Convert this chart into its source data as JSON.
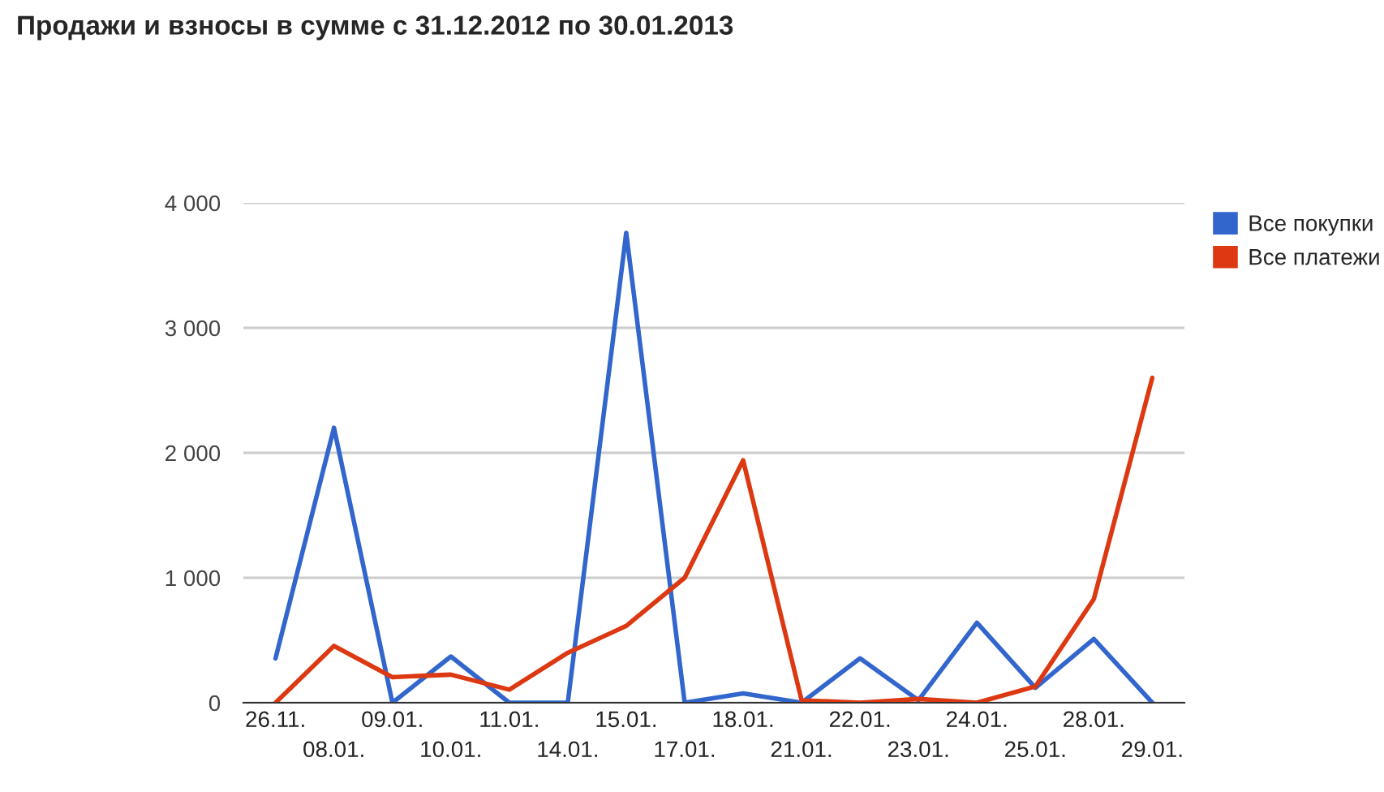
{
  "chart_data": {
    "type": "line",
    "title": "Продажи и взносы в сумме с 31.12.2012 по 30.01.2013",
    "categories": [
      "26.11.",
      "08.01.",
      "09.01.",
      "10.01.",
      "11.01.",
      "14.01.",
      "15.01.",
      "17.01.",
      "18.01.",
      "21.01.",
      "22.01.",
      "23.01.",
      "24.01.",
      "25.01.",
      "28.01.",
      "29.01."
    ],
    "series": [
      {
        "name": "Все покупки",
        "color": "#3366cc",
        "values": [
          355,
          2200,
          0,
          370,
          0,
          0,
          3760,
          0,
          75,
          0,
          355,
          20,
          640,
          120,
          510,
          0
        ]
      },
      {
        "name": "Все платежи",
        "color": "#dc3912",
        "values": [
          0,
          455,
          205,
          225,
          105,
          400,
          615,
          1000,
          1940,
          20,
          0,
          30,
          0,
          130,
          830,
          2600
        ]
      }
    ],
    "ylim": [
      0,
      4000
    ],
    "yticks": [
      {
        "value": 0,
        "label": "0"
      },
      {
        "value": 1000,
        "label": "1 000"
      },
      {
        "value": 2000,
        "label": "2 000"
      },
      {
        "value": 3000,
        "label": "3 000"
      },
      {
        "value": 4000,
        "label": "4 000"
      }
    ],
    "grid": "y",
    "legend": "top right",
    "marker": "none",
    "line_style": "solid"
  }
}
